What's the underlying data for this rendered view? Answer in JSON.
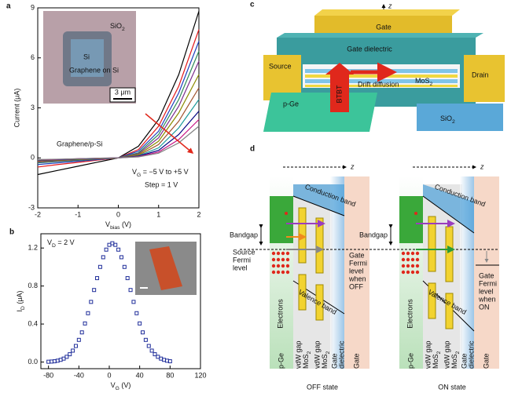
{
  "chart_data": [
    {
      "type": "line",
      "label": "a",
      "ylabel": "Current (μA)",
      "xlabel": [
        "V",
        "bias",
        " (V)"
      ],
      "x": [
        -2,
        -1.5,
        -1,
        -0.5,
        0,
        0.5,
        1,
        1.5,
        2
      ],
      "series": [
        {
          "color": "#000000",
          "values": [
            -1.0,
            -0.75,
            -0.5,
            -0.25,
            0,
            0.7,
            2.3,
            5.0,
            8.8
          ]
        },
        {
          "color": "#e41a1c",
          "values": [
            -0.55,
            -0.4,
            -0.27,
            -0.13,
            0,
            0.5,
            1.9,
            4.3,
            7.7
          ]
        },
        {
          "color": "#1f3fbf",
          "values": [
            -0.4,
            -0.3,
            -0.2,
            -0.1,
            0,
            0.4,
            1.6,
            3.9,
            7.0
          ]
        },
        {
          "color": "#2e8b57",
          "values": [
            -0.3,
            -0.22,
            -0.15,
            -0.07,
            0,
            0.3,
            1.4,
            3.5,
            6.4
          ]
        },
        {
          "color": "#7b2d8e",
          "values": [
            -0.25,
            -0.18,
            -0.12,
            -0.06,
            0,
            0.25,
            1.2,
            3.1,
            5.8
          ]
        },
        {
          "color": "#8b8b00",
          "values": [
            -0.2,
            -0.15,
            -0.1,
            -0.05,
            0,
            0.2,
            1.0,
            2.7,
            5.0
          ]
        },
        {
          "color": "#a0522d",
          "values": [
            -0.17,
            -0.13,
            -0.08,
            -0.04,
            0,
            0.15,
            0.8,
            2.2,
            4.2
          ]
        },
        {
          "color": "#1a9a9a",
          "values": [
            -0.15,
            -0.11,
            -0.07,
            -0.03,
            0,
            0.12,
            0.6,
            1.8,
            3.5
          ]
        },
        {
          "color": "#000080",
          "values": [
            -0.13,
            -0.1,
            -0.06,
            -0.03,
            0,
            0.1,
            0.45,
            1.4,
            2.8
          ]
        },
        {
          "color": "#c71585",
          "values": [
            -0.12,
            -0.09,
            -0.05,
            -0.02,
            0,
            0.08,
            0.35,
            1.1,
            2.3
          ]
        },
        {
          "color": "#808080",
          "values": [
            -0.1,
            -0.08,
            -0.05,
            -0.02,
            0,
            0.06,
            0.28,
            0.9,
            1.9
          ]
        }
      ],
      "xlim": [
        -2,
        2
      ],
      "xticks": [
        -2,
        -1,
        0,
        1,
        2
      ],
      "ylim": [
        -3,
        9
      ],
      "yticks": [
        -3,
        0,
        3,
        6,
        9
      ],
      "inset": {
        "sio2": [
          "SiO",
          "2"
        ],
        "si": "Si",
        "graphene": "Graphene on Si",
        "scale": "3 μm"
      },
      "annotations": [
        "Graphene/p-Si",
        [
          "V",
          "G",
          " = −5 V to +5 V"
        ],
        "Step = 1 V"
      ]
    },
    {
      "type": "scatter",
      "label": "b",
      "ylabel": [
        "I",
        "D",
        " (μA)"
      ],
      "xlabel": [
        "V",
        "G",
        " (V)"
      ],
      "color": "#1f2d9a",
      "x": [
        -80,
        -76,
        -72,
        -68,
        -64,
        -60,
        -56,
        -52,
        -48,
        -44,
        -40,
        -36,
        -32,
        -28,
        -24,
        -20,
        -16,
        -12,
        -8,
        -4,
        0,
        4,
        8,
        12,
        16,
        20,
        24,
        28,
        32,
        36,
        40,
        44,
        48,
        52,
        56,
        60,
        64,
        68,
        72,
        76,
        80
      ],
      "values": [
        0.003,
        0.005,
        0.008,
        0.014,
        0.023,
        0.036,
        0.055,
        0.082,
        0.12,
        0.169,
        0.233,
        0.312,
        0.406,
        0.514,
        0.633,
        0.758,
        0.883,
        1.001,
        1.103,
        1.183,
        1.233,
        1.25,
        1.233,
        1.183,
        1.103,
        1.001,
        0.883,
        0.758,
        0.633,
        0.514,
        0.406,
        0.312,
        0.233,
        0.169,
        0.12,
        0.082,
        0.055,
        0.036,
        0.023,
        0.014,
        0.008
      ],
      "xlim": [
        -90,
        120
      ],
      "xticks": [
        -80,
        -40,
        0,
        40,
        80,
        120
      ],
      "ylim": [
        -0.07,
        1.35
      ],
      "yticks": [
        {
          "value": 0,
          "label": "0.0"
        },
        0.4,
        0.8,
        1.2
      ],
      "annotations": [
        [
          "V",
          "D",
          " = 2 V"
        ]
      ]
    }
  ],
  "diagram_c": {
    "label": "c",
    "axis": "z",
    "gate": "Gate",
    "dielectric": "Gate dielectric",
    "source": "Source",
    "drain": "Drain",
    "mos2": [
      "MoS",
      "2"
    ],
    "btbt": "BTBT",
    "drift": "Drift diffusion",
    "pge": "p-Ge",
    "sio2": [
      "SiO",
      "2"
    ]
  },
  "diagram_d": {
    "label": "d",
    "source_fermi": [
      "Source",
      "Fermi",
      "level"
    ],
    "states": [
      {
        "axis": "z",
        "conduction": "Conduction band",
        "valence": "Valence band",
        "bandgap": "Bandgap",
        "electrons": "Electrons",
        "gate_fermi": [
          "Gate",
          "Fermi",
          "level",
          "when",
          "OFF"
        ],
        "layers": [
          "p-Ge",
          "vdW gap",
          [
            "MoS",
            "2"
          ],
          "vdW gap",
          [
            "MoS",
            "2"
          ],
          "Gate",
          "dielectric",
          "Gate"
        ],
        "state": "OFF state"
      },
      {
        "axis": "z",
        "conduction": "Conduction band",
        "valence": "Valence band",
        "bandgap": "Bandgap",
        "electrons": "Electrons",
        "gate_fermi": [
          "Gate",
          "Fermi",
          "level",
          "when",
          "ON"
        ],
        "layers": [
          "p-Ge",
          "vdW gap",
          [
            "MoS",
            "2"
          ],
          "vdW gap",
          [
            "MoS",
            "2"
          ],
          "Gate",
          "dielectric",
          "Gate"
        ],
        "state": "ON state"
      }
    ]
  }
}
